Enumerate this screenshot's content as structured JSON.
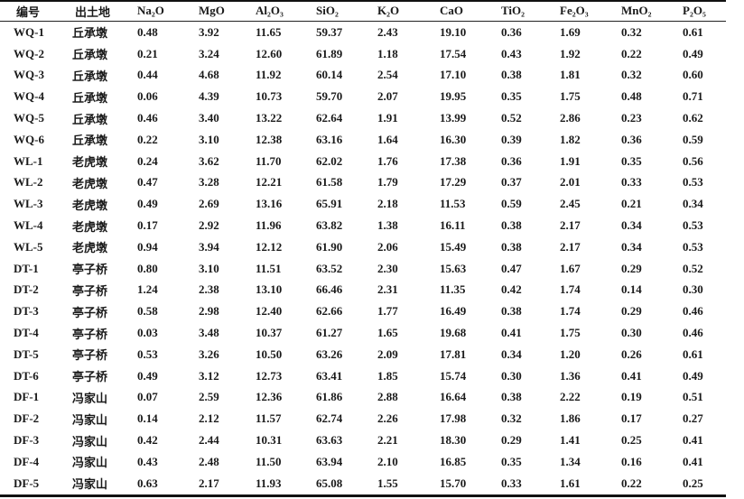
{
  "table": {
    "headers": [
      "编号",
      "出土地",
      "Na₂O",
      "MgO",
      "Al₂O₃",
      "SiO₂",
      "K₂O",
      "CaO",
      "TiO₂",
      "Fe₂O₃",
      "MnO₂",
      "P₂O₅"
    ],
    "rows": [
      [
        "WQ-1",
        "丘承墩",
        "0.48",
        "3.92",
        "11.65",
        "59.37",
        "2.43",
        "19.10",
        "0.36",
        "1.69",
        "0.32",
        "0.61"
      ],
      [
        "WQ-2",
        "丘承墩",
        "0.21",
        "3.24",
        "12.60",
        "61.89",
        "1.18",
        "17.54",
        "0.43",
        "1.92",
        "0.22",
        "0.49"
      ],
      [
        "WQ-3",
        "丘承墩",
        "0.44",
        "4.68",
        "11.92",
        "60.14",
        "2.54",
        "17.10",
        "0.38",
        "1.81",
        "0.32",
        "0.60"
      ],
      [
        "WQ-4",
        "丘承墩",
        "0.06",
        "4.39",
        "10.73",
        "59.70",
        "2.07",
        "19.95",
        "0.35",
        "1.75",
        "0.48",
        "0.71"
      ],
      [
        "WQ-5",
        "丘承墩",
        "0.46",
        "3.40",
        "13.22",
        "62.64",
        "1.91",
        "13.99",
        "0.52",
        "2.86",
        "0.23",
        "0.62"
      ],
      [
        "WQ-6",
        "丘承墩",
        "0.22",
        "3.10",
        "12.38",
        "63.16",
        "1.64",
        "16.30",
        "0.39",
        "1.82",
        "0.36",
        "0.59"
      ],
      [
        "WL-1",
        "老虎墩",
        "0.24",
        "3.62",
        "11.70",
        "62.02",
        "1.76",
        "17.38",
        "0.36",
        "1.91",
        "0.35",
        "0.56"
      ],
      [
        "WL-2",
        "老虎墩",
        "0.47",
        "3.28",
        "12.21",
        "61.58",
        "1.79",
        "17.29",
        "0.37",
        "2.01",
        "0.33",
        "0.53"
      ],
      [
        "WL-3",
        "老虎墩",
        "0.49",
        "2.69",
        "13.16",
        "65.91",
        "2.18",
        "11.53",
        "0.59",
        "2.45",
        "0.21",
        "0.34"
      ],
      [
        "WL-4",
        "老虎墩",
        "0.17",
        "2.92",
        "11.96",
        "63.82",
        "1.38",
        "16.11",
        "0.38",
        "2.17",
        "0.34",
        "0.53"
      ],
      [
        "WL-5",
        "老虎墩",
        "0.94",
        "3.94",
        "12.12",
        "61.90",
        "2.06",
        "15.49",
        "0.38",
        "2.17",
        "0.34",
        "0.53"
      ],
      [
        "DT-1",
        "亭子桥",
        "0.80",
        "3.10",
        "11.51",
        "63.52",
        "2.30",
        "15.63",
        "0.47",
        "1.67",
        "0.29",
        "0.52"
      ],
      [
        "DT-2",
        "亭子桥",
        "1.24",
        "2.38",
        "13.10",
        "66.46",
        "2.31",
        "11.35",
        "0.42",
        "1.74",
        "0.14",
        "0.30"
      ],
      [
        "DT-3",
        "亭子桥",
        "0.58",
        "2.98",
        "12.40",
        "62.66",
        "1.77",
        "16.49",
        "0.38",
        "1.74",
        "0.29",
        "0.46"
      ],
      [
        "DT-4",
        "亭子桥",
        "0.03",
        "3.48",
        "10.37",
        "61.27",
        "1.65",
        "19.68",
        "0.41",
        "1.75",
        "0.30",
        "0.46"
      ],
      [
        "DT-5",
        "亭子桥",
        "0.53",
        "3.26",
        "10.50",
        "63.26",
        "2.09",
        "17.81",
        "0.34",
        "1.20",
        "0.26",
        "0.61"
      ],
      [
        "DT-6",
        "亭子桥",
        "0.49",
        "3.12",
        "12.73",
        "63.41",
        "1.85",
        "15.74",
        "0.30",
        "1.36",
        "0.41",
        "0.49"
      ],
      [
        "DF-1",
        "冯家山",
        "0.07",
        "2.59",
        "12.36",
        "61.86",
        "2.88",
        "16.64",
        "0.38",
        "2.22",
        "0.19",
        "0.51"
      ],
      [
        "DF-2",
        "冯家山",
        "0.14",
        "2.12",
        "11.57",
        "62.74",
        "2.26",
        "17.98",
        "0.32",
        "1.86",
        "0.17",
        "0.27"
      ],
      [
        "DF-3",
        "冯家山",
        "0.42",
        "2.44",
        "10.31",
        "63.63",
        "2.21",
        "18.30",
        "0.29",
        "1.41",
        "0.25",
        "0.41"
      ],
      [
        "DF-4",
        "冯家山",
        "0.43",
        "2.48",
        "11.50",
        "63.94",
        "2.10",
        "16.85",
        "0.35",
        "1.34",
        "0.16",
        "0.41"
      ],
      [
        "DF-5",
        "冯家山",
        "0.63",
        "2.17",
        "11.93",
        "65.08",
        "1.55",
        "15.70",
        "0.33",
        "1.61",
        "0.22",
        "0.25"
      ]
    ]
  }
}
